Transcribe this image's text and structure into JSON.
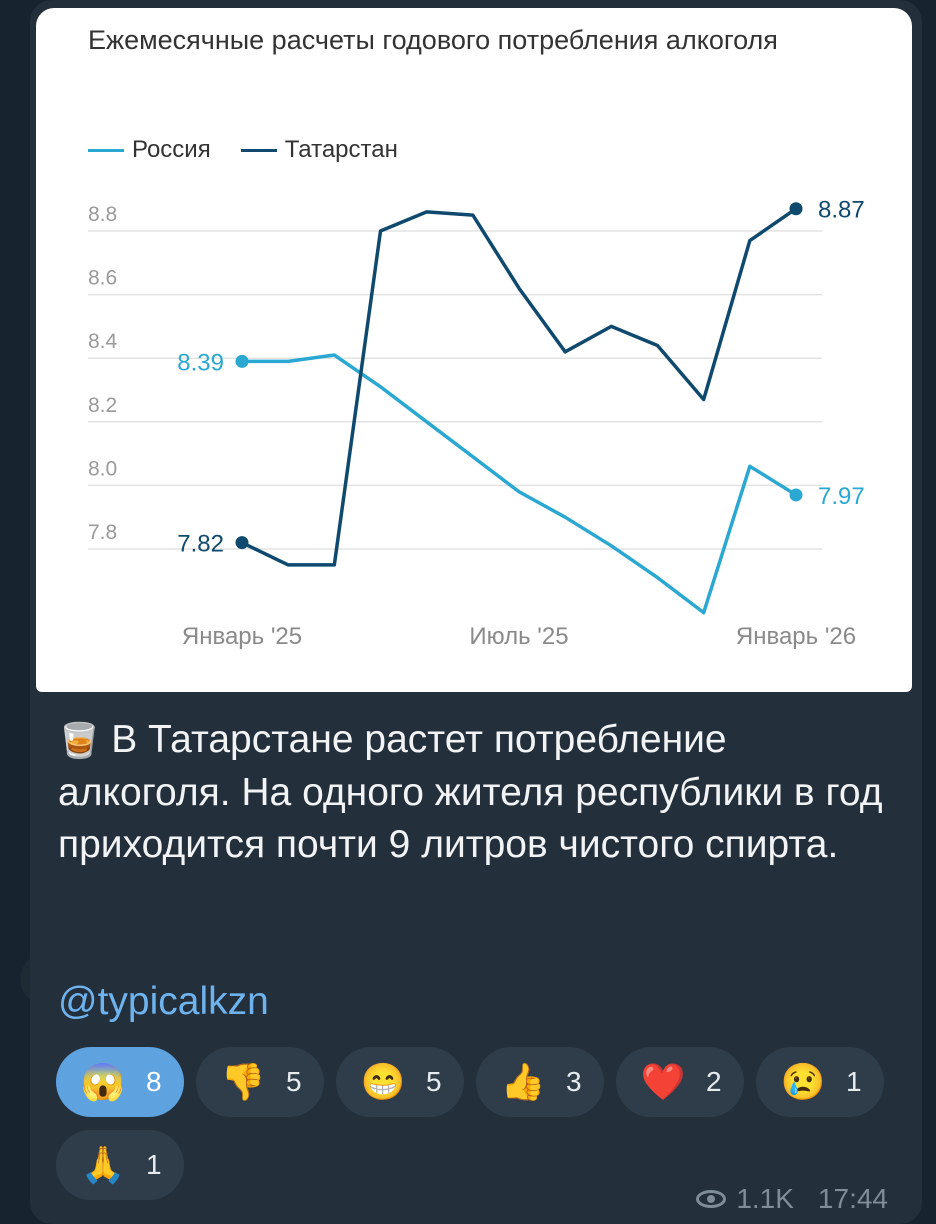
{
  "post": {
    "caption_emoji": "🥃",
    "caption": "В Татарстане растет потребление алкоголя. На одного жителя республики в год приходится почти 9 литров чистого спирта.",
    "handle": "@typicalkzn",
    "views": "1.1K",
    "time": "17:44"
  },
  "reactions": [
    {
      "emoji": "😱",
      "count": "8",
      "active": true
    },
    {
      "emoji": "👎",
      "count": "5",
      "active": false
    },
    {
      "emoji": "😁",
      "count": "5",
      "active": false
    },
    {
      "emoji": "👍",
      "count": "3",
      "active": false
    },
    {
      "emoji": "❤️",
      "count": "2",
      "active": false
    },
    {
      "emoji": "😢",
      "count": "1",
      "active": false
    },
    {
      "emoji": "🙏",
      "count": "1",
      "active": false
    }
  ],
  "colors": {
    "russia": "#2aa8d2",
    "tatarstan": "#0f4a6e",
    "bubble": "#232f3b",
    "accent": "#5ea3df",
    "link": "#6fb3ee"
  },
  "chart_data": {
    "type": "line",
    "title": "Ежемесячные расчеты годового потребления алкоголя",
    "x": [
      "2025-01",
      "2025-02",
      "2025-03",
      "2025-04",
      "2025-05",
      "2025-06",
      "2025-07",
      "2025-08",
      "2025-09",
      "2025-10",
      "2025-11",
      "2025-12",
      "2026-01"
    ],
    "x_tick_labels": [
      {
        "x": "2025-01",
        "label": "Январь '25"
      },
      {
        "x": "2025-07",
        "label": "Июль '25"
      },
      {
        "x": "2026-01",
        "label": "Январь '26"
      }
    ],
    "y_ticks": [
      "8.8",
      "8.6",
      "8.4",
      "8.2",
      "8.0",
      "7.8"
    ],
    "ylim": [
      7.67,
      8.92
    ],
    "series": [
      {
        "name": "Россия",
        "color": "#2aa8d2",
        "values": [
          8.39,
          8.39,
          8.41,
          8.31,
          8.2,
          8.09,
          7.98,
          7.9,
          7.81,
          7.71,
          7.6,
          8.06,
          7.97
        ],
        "start_label": "8.39",
        "end_label": "7.97"
      },
      {
        "name": "Татарстан",
        "color": "#0f4a6e",
        "values": [
          7.82,
          7.75,
          7.75,
          8.8,
          8.86,
          8.85,
          8.62,
          8.42,
          8.5,
          8.44,
          8.27,
          8.77,
          8.87
        ],
        "start_label": "7.82",
        "end_label": "8.87"
      }
    ],
    "grid": true,
    "legend": "top-left"
  }
}
